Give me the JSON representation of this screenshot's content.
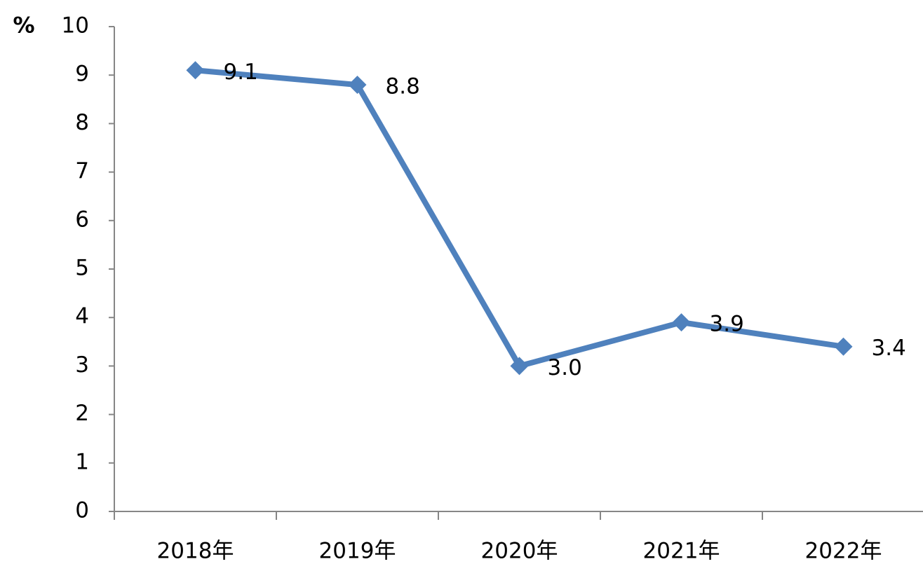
{
  "chart_data": {
    "type": "line",
    "y_label": "%",
    "categories": [
      "2018年",
      "2019年",
      "2020年",
      "2021年",
      "2022年"
    ],
    "values": [
      9.1,
      8.8,
      3.0,
      3.9,
      3.4
    ],
    "value_labels": [
      "9.1",
      "8.8",
      "3.0",
      "3.9",
      "3.4"
    ],
    "color": "#4f81bd",
    "ylim": [
      0,
      10
    ],
    "yticks": [
      0,
      1,
      2,
      3,
      4,
      5,
      6,
      7,
      8,
      9,
      10
    ],
    "grid": false
  }
}
